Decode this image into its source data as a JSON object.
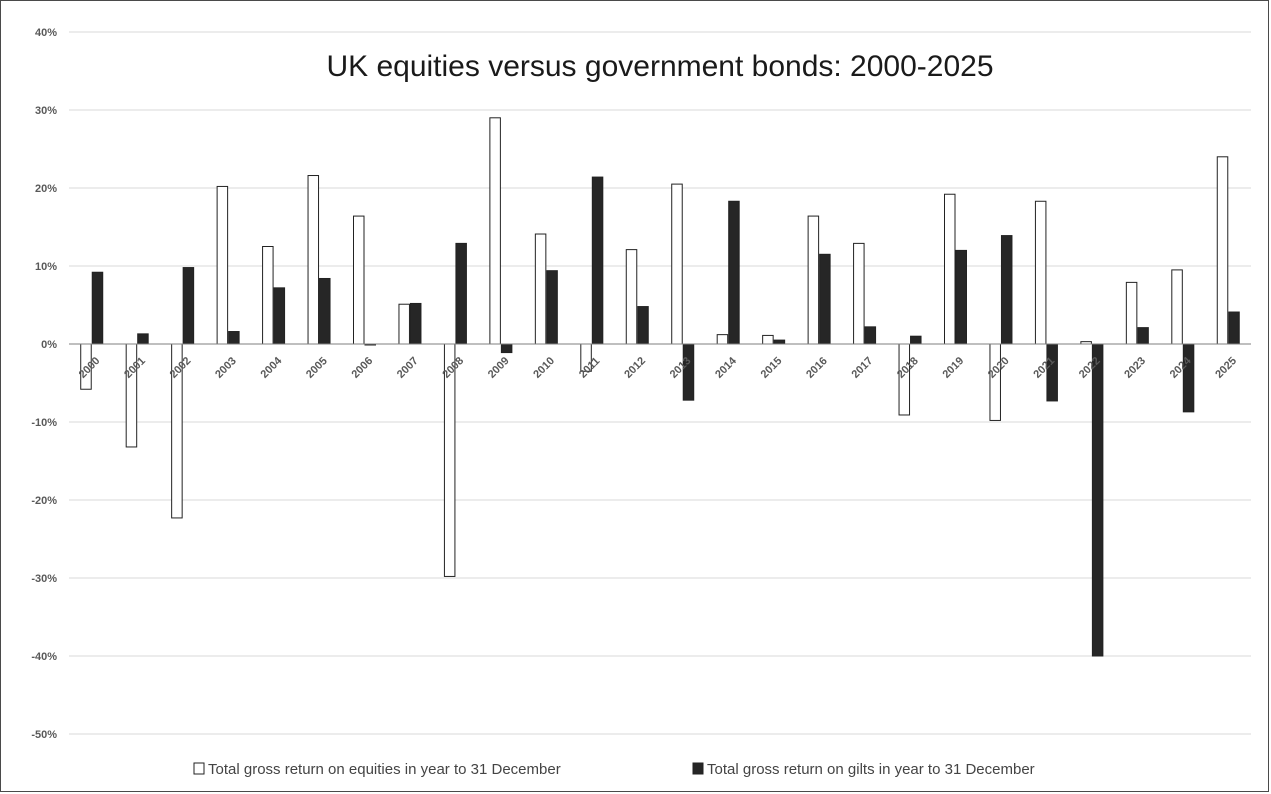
{
  "chart_data": {
    "type": "bar",
    "title": "UK equities versus government bonds: 2000-2025",
    "xlabel": "",
    "ylabel": "",
    "ylim": [
      -0.5,
      0.4
    ],
    "yticks": [
      "-50%",
      "-40%",
      "-30%",
      "-20%",
      "-10%",
      "0%",
      "10%",
      "20%",
      "30%",
      "40%"
    ],
    "grid": true,
    "legend_position": "bottom",
    "categories": [
      "2000",
      "2001",
      "2002",
      "2003",
      "2004",
      "2005",
      "2006",
      "2007",
      "2008",
      "2009",
      "2010",
      "2011",
      "2012",
      "2013",
      "2014",
      "2015",
      "2016",
      "2017",
      "2018",
      "2019",
      "2020",
      "2021",
      "2022",
      "2023",
      "2024",
      "2025"
    ],
    "series": [
      {
        "name": "Total gross return on equities in year to 31 December",
        "color": "#ffffff",
        "values": [
          -0.058,
          -0.132,
          -0.223,
          0.202,
          0.125,
          0.216,
          0.164,
          0.051,
          -0.298,
          0.29,
          0.141,
          -0.035,
          0.121,
          0.205,
          0.012,
          0.011,
          0.164,
          0.129,
          -0.091,
          0.192,
          -0.098,
          0.183,
          0.003,
          0.079,
          0.095,
          0.24
        ]
      },
      {
        "name": "Total gross return on gilts in year to 31 December",
        "color": "#262626",
        "values": [
          0.092,
          0.013,
          0.098,
          0.016,
          0.072,
          0.084,
          -0.001,
          0.052,
          0.129,
          -0.011,
          0.094,
          0.214,
          0.048,
          -0.072,
          0.183,
          0.005,
          0.115,
          0.022,
          0.01,
          0.12,
          0.139,
          -0.073,
          -0.4,
          0.021,
          -0.087,
          0.041
        ]
      }
    ]
  }
}
